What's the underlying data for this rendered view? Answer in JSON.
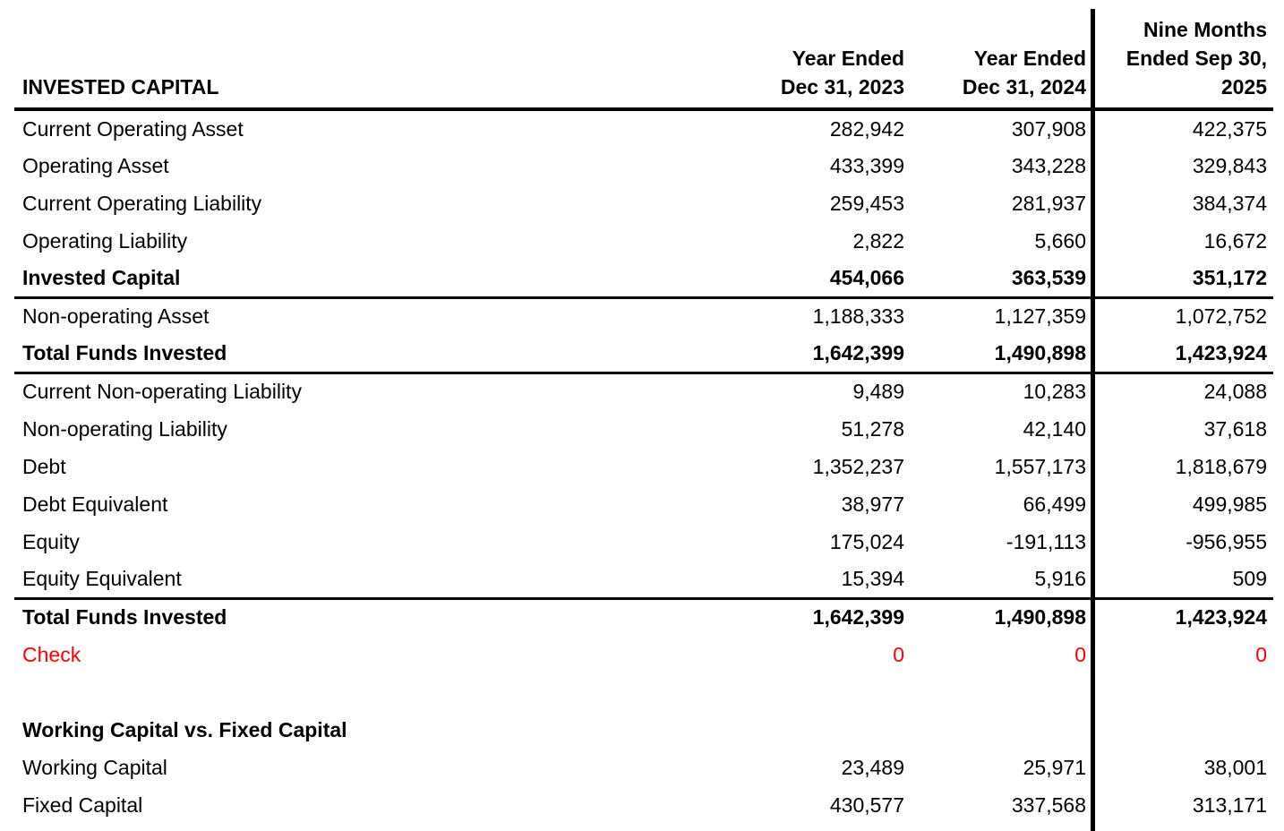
{
  "colors": {
    "background": "#ffffff",
    "text": "#000000",
    "check": "#ff0000",
    "rule": "#000000"
  },
  "table": {
    "title": "INVESTED CAPITAL",
    "columns": [
      {
        "lines": [
          "Year Ended",
          "Dec 31, 2023"
        ]
      },
      {
        "lines": [
          "Year Ended",
          "Dec 31, 2024"
        ]
      },
      {
        "lines": [
          "Nine Months",
          "Ended Sep 30,",
          "2025"
        ]
      }
    ],
    "rows": [
      {
        "label": "Current Operating Asset",
        "values": [
          "282,942",
          "307,908",
          "422,375"
        ]
      },
      {
        "label": "Operating Asset",
        "values": [
          "433,399",
          "343,228",
          "329,843"
        ]
      },
      {
        "label": "Current Operating Liability",
        "values": [
          "259,453",
          "281,937",
          "384,374"
        ]
      },
      {
        "label": "Operating Liability",
        "values": [
          "2,822",
          "5,660",
          "16,672"
        ]
      },
      {
        "label": "Invested Capital",
        "values": [
          "454,066",
          "363,539",
          "351,172"
        ]
      },
      {
        "label": "Non-operating Asset",
        "values": [
          "1,188,333",
          "1,127,359",
          "1,072,752"
        ]
      },
      {
        "label": "Total Funds Invested",
        "values": [
          "1,642,399",
          "1,490,898",
          "1,423,924"
        ]
      },
      {
        "label": "Current Non-operating Liability",
        "values": [
          "9,489",
          "10,283",
          "24,088"
        ]
      },
      {
        "label": "Non-operating Liability",
        "values": [
          "51,278",
          "42,140",
          "37,618"
        ]
      },
      {
        "label": "Debt",
        "values": [
          "1,352,237",
          "1,557,173",
          "1,818,679"
        ]
      },
      {
        "label": "Debt Equivalent",
        "values": [
          "38,977",
          "66,499",
          "499,985"
        ]
      },
      {
        "label": "Equity",
        "values": [
          "175,024",
          "-191,113",
          "-956,955"
        ]
      },
      {
        "label": "Equity Equivalent",
        "values": [
          "15,394",
          "5,916",
          "509"
        ]
      },
      {
        "label": "Total Funds Invested",
        "values": [
          "1,642,399",
          "1,490,898",
          "1,423,924"
        ]
      },
      {
        "label": "Check",
        "values": [
          "0",
          "0",
          "0"
        ]
      },
      {
        "label": "Working Capital vs. Fixed Capital",
        "values": [
          "",
          "",
          ""
        ]
      },
      {
        "label": "Working Capital",
        "values": [
          "23,489",
          "25,971",
          "38,001"
        ]
      },
      {
        "label": "Fixed Capital",
        "values": [
          "430,577",
          "337,568",
          "313,171"
        ]
      }
    ]
  }
}
